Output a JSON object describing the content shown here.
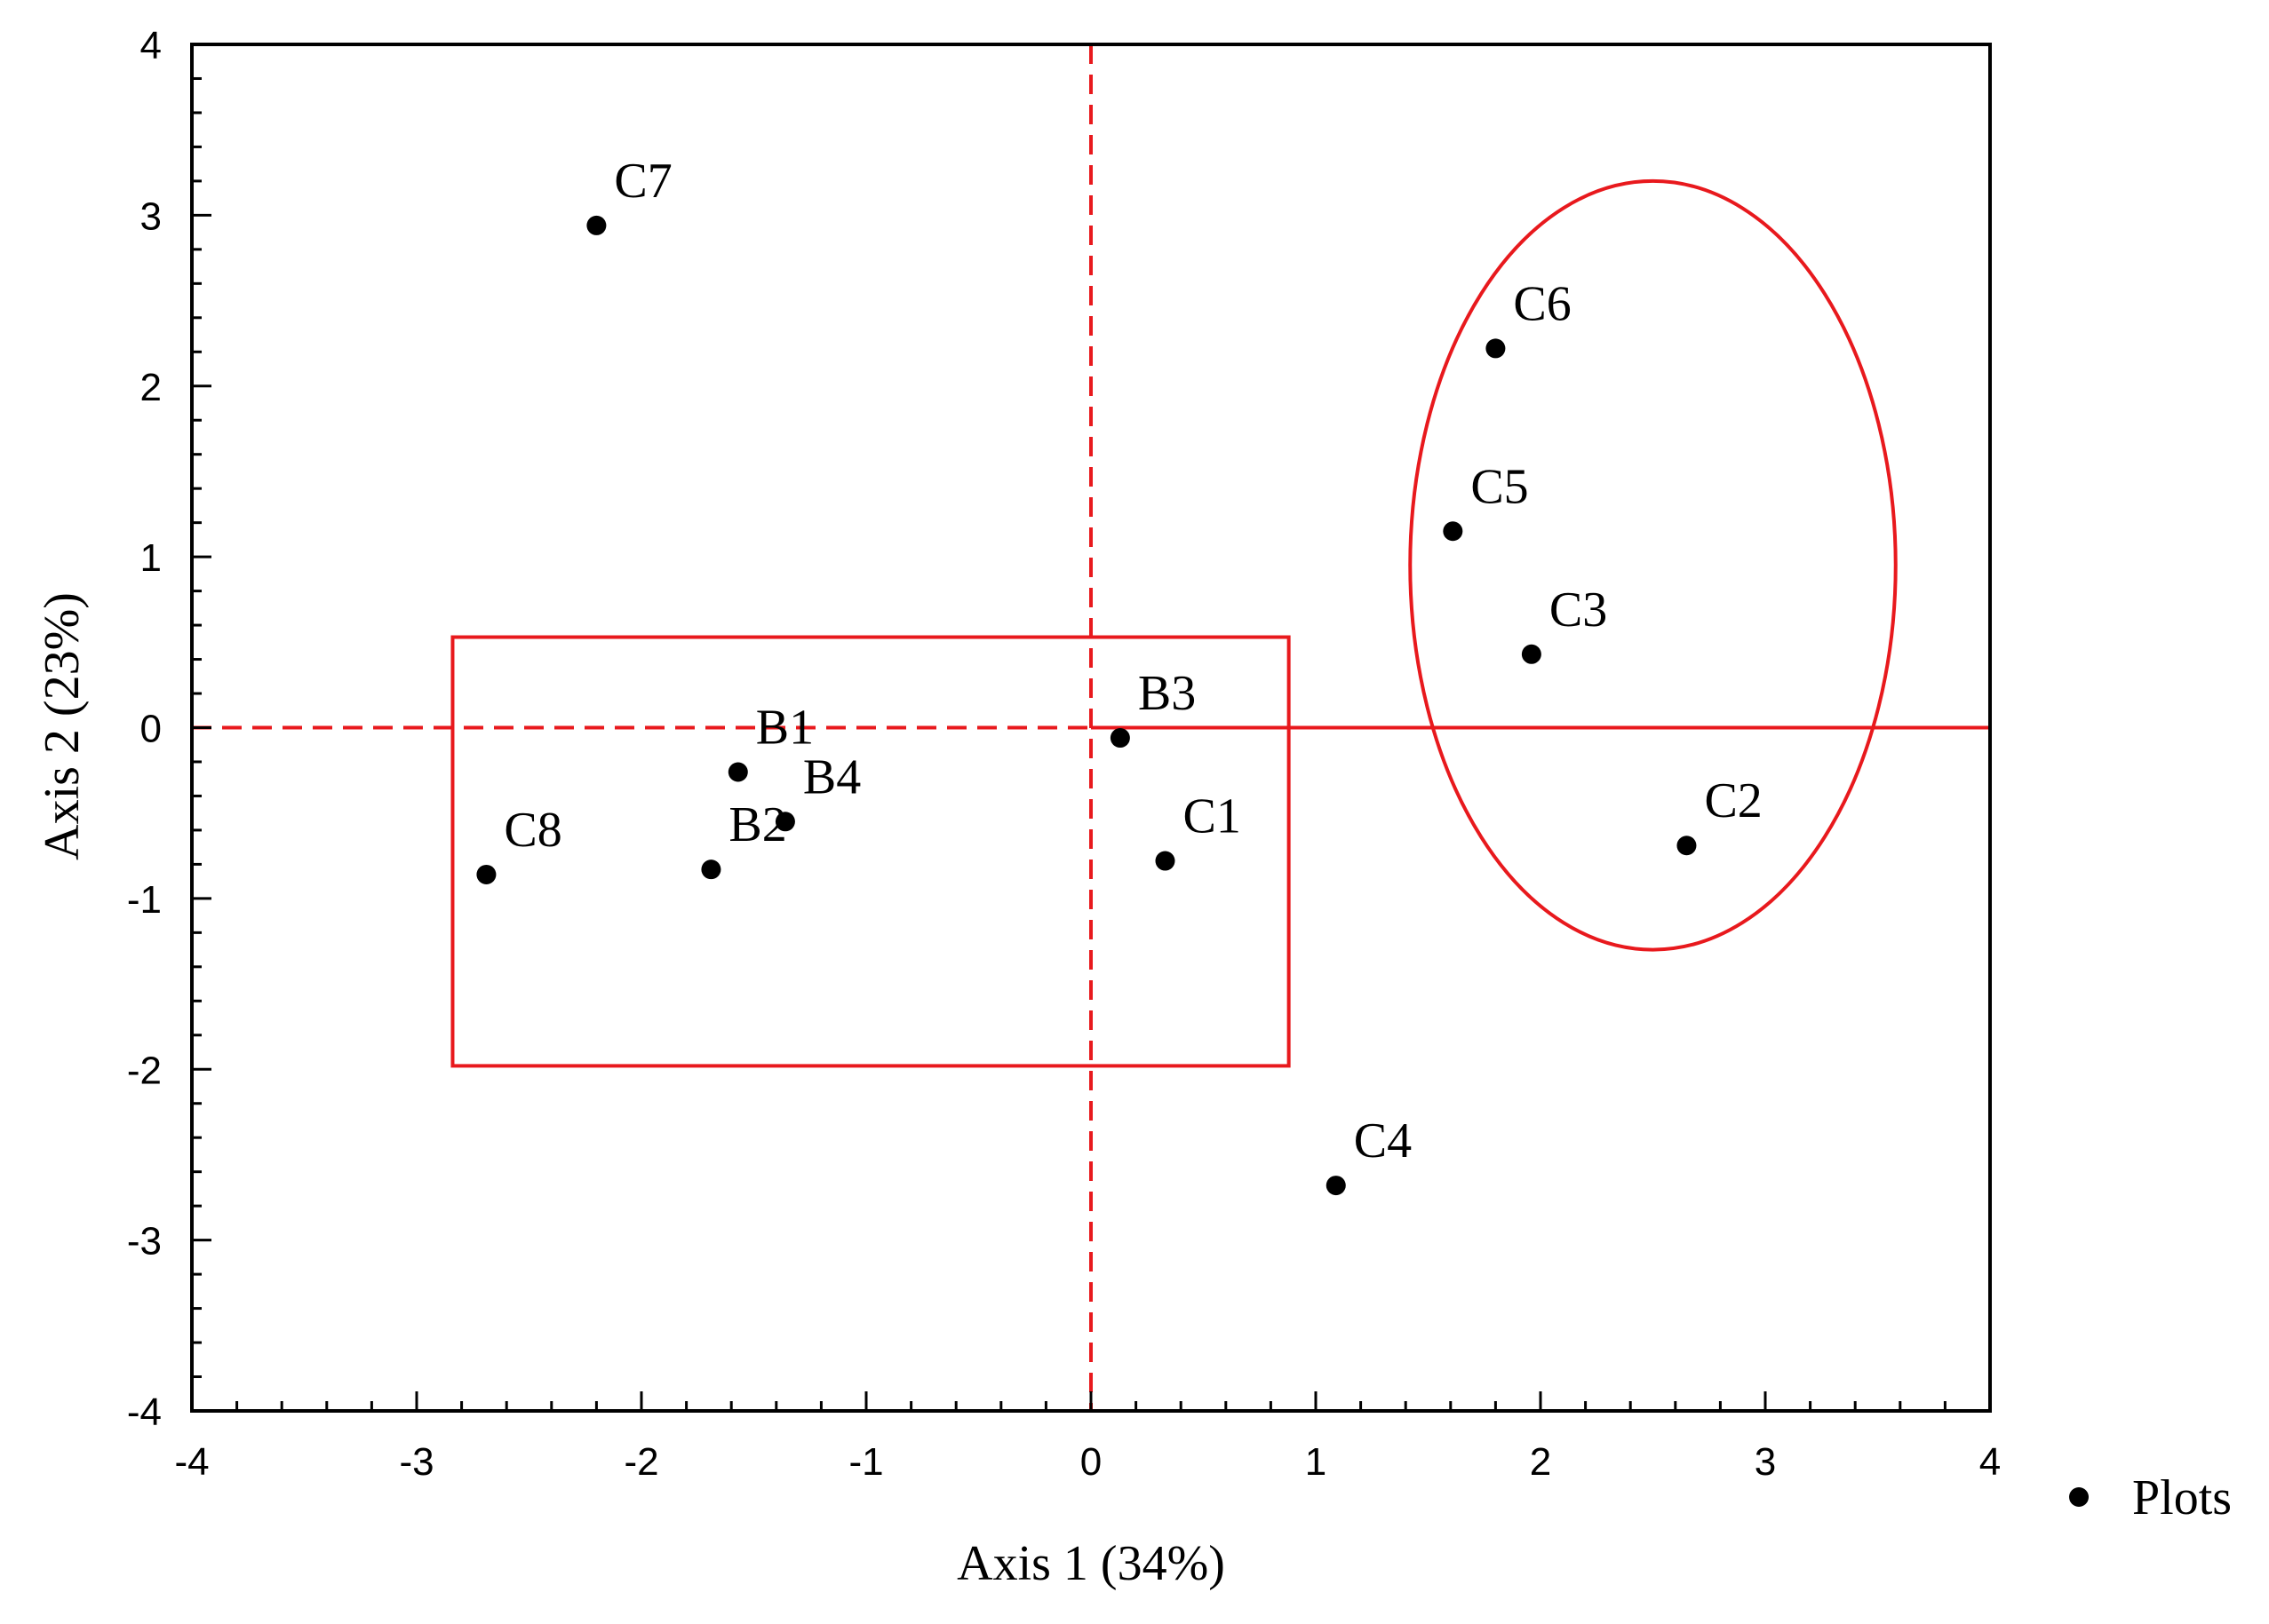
{
  "chart_data": {
    "type": "scatter",
    "title": "",
    "xlabel": "Axis 1 (34%)",
    "ylabel": "Axis 2 (23%)",
    "xlim": [
      -4,
      4
    ],
    "ylim": [
      -4,
      4
    ],
    "xticks": [
      -4,
      -3,
      -2,
      -1,
      0,
      1,
      2,
      3,
      4
    ],
    "yticks": [
      -4,
      -3,
      -2,
      -1,
      0,
      1,
      2,
      3,
      4
    ],
    "grid": false,
    "legend": {
      "placement": "bottom-right outside",
      "entries": [
        "Plots"
      ]
    },
    "series": [
      {
        "name": "Plots",
        "marker": "filled-circle",
        "color": "#000000",
        "points": [
          {
            "label": "C7",
            "x": -2.2,
            "y": 2.94
          },
          {
            "label": "C6",
            "x": 1.8,
            "y": 2.22
          },
          {
            "label": "C5",
            "x": 1.61,
            "y": 1.15
          },
          {
            "label": "C3",
            "x": 1.96,
            "y": 0.43
          },
          {
            "label": "B3",
            "x": 0.13,
            "y": -0.06
          },
          {
            "label": "B1",
            "x": -1.57,
            "y": -0.26
          },
          {
            "label": "B4",
            "x": -1.36,
            "y": -0.55
          },
          {
            "label": "B2",
            "x": -1.69,
            "y": -0.83
          },
          {
            "label": "C8",
            "x": -2.69,
            "y": -0.86
          },
          {
            "label": "C1",
            "x": 0.33,
            "y": -0.78
          },
          {
            "label": "C2",
            "x": 2.65,
            "y": -0.69
          },
          {
            "label": "C4",
            "x": 1.09,
            "y": -2.68
          }
        ]
      }
    ],
    "annotations": {
      "color": "#e8191d",
      "reference_lines": [
        {
          "orientation": "vertical",
          "x": 0,
          "style": "dashed"
        },
        {
          "orientation": "horizontal",
          "y": 0,
          "x_range": [
            -4,
            0
          ],
          "style": "dashed"
        },
        {
          "orientation": "horizontal",
          "y": 0,
          "x_range": [
            0,
            4
          ],
          "style": "solid"
        }
      ],
      "rectangle": {
        "x_range": [
          -2.84,
          0.88
        ],
        "y_range": [
          -1.98,
          0.53
        ]
      },
      "ellipse": {
        "center": [
          2.5,
          0.95
        ],
        "rx": 1.08,
        "ry": 2.25
      }
    }
  }
}
